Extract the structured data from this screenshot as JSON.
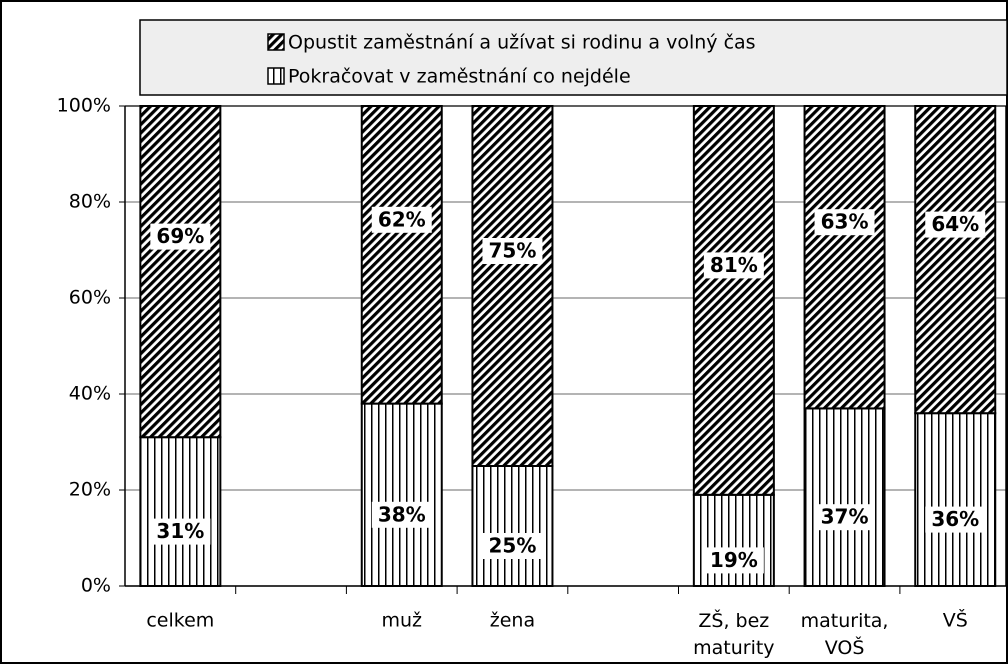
{
  "chart_data": {
    "type": "stacked_bar",
    "categories": [
      "celkem",
      null,
      "muž",
      "žena",
      null,
      "ZŠ, bez maturity",
      "maturita, VOŠ",
      "VŠ"
    ],
    "series": [
      {
        "name": "Opustit zaměstnání a užívat si rodinu a volný čas",
        "color": "#000000",
        "values": [
          69,
          null,
          62,
          75,
          null,
          81,
          63,
          64
        ],
        "value_labels": [
          "69%",
          null,
          "62%",
          "75%",
          null,
          "81%",
          "63%",
          "64%"
        ]
      },
      {
        "name": "Pokračovat v zaměstnání co nejdéle",
        "color": "#000000",
        "values": [
          31,
          null,
          38,
          25,
          null,
          19,
          37,
          36
        ],
        "value_labels": [
          "31%",
          null,
          "38%",
          "25%",
          null,
          "19%",
          "37%",
          "36%"
        ]
      }
    ],
    "ylim": [
      0,
      100
    ],
    "yticks": [
      {
        "value": 0,
        "label": "0%"
      },
      {
        "value": 20,
        "label": "20%"
      },
      {
        "value": 40,
        "label": "40%"
      },
      {
        "value": 60,
        "label": "60%"
      },
      {
        "value": 80,
        "label": "80%"
      },
      {
        "value": 100,
        "label": "100%"
      }
    ],
    "grid": true,
    "legend": "top"
  }
}
